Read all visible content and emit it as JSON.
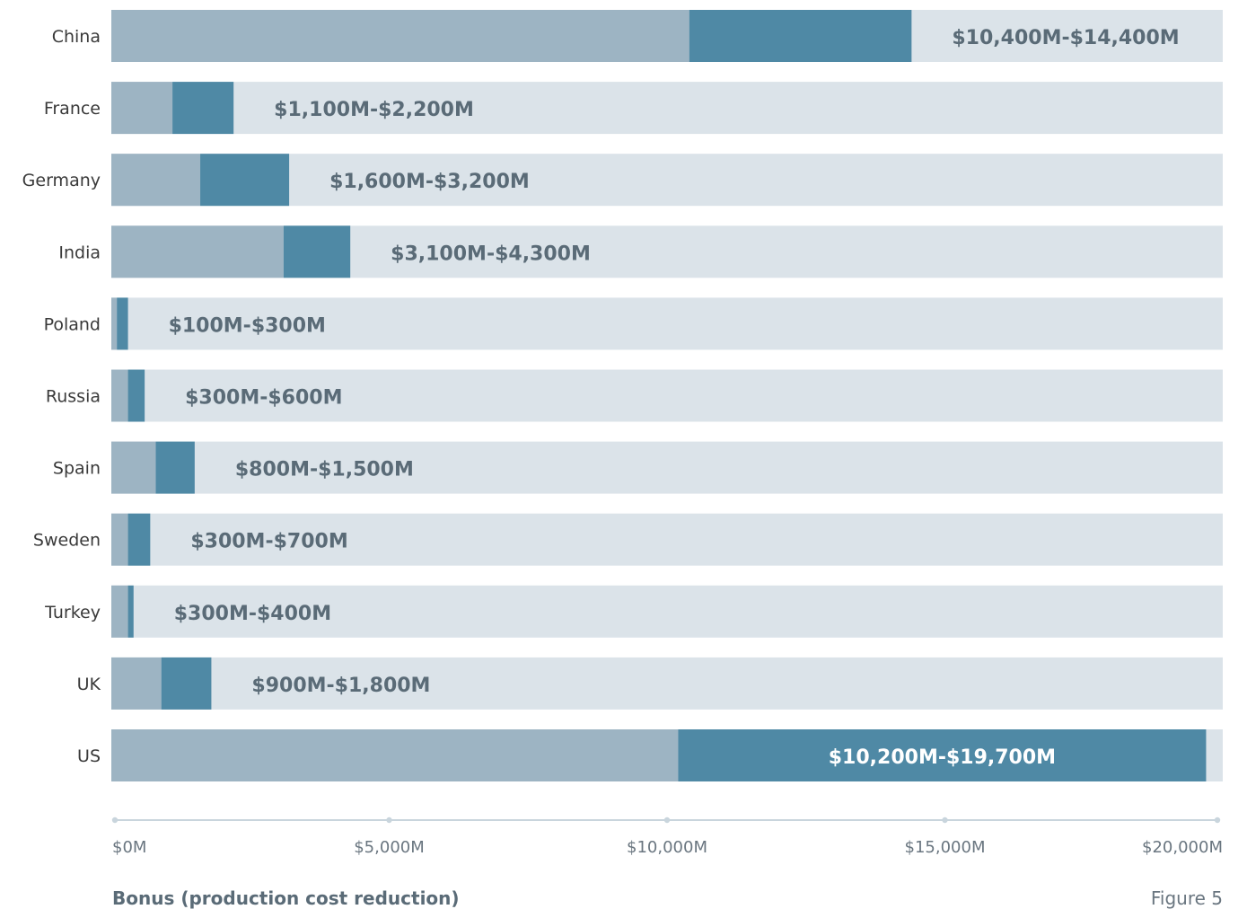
{
  "chart_data": {
    "type": "bar",
    "orientation": "horizontal",
    "categories": [
      "China",
      "France",
      "Germany",
      "India",
      "Poland",
      "Russia",
      "Spain",
      "Sweden",
      "Turkey",
      "UK",
      "US"
    ],
    "series": [
      {
        "low": [
          10400,
          1100,
          1600,
          3100,
          100,
          300,
          800,
          300,
          300,
          900,
          10200
        ],
        "high": [
          14400,
          2200,
          3200,
          4300,
          300,
          600,
          1500,
          700,
          400,
          1800,
          19700
        ]
      }
    ],
    "range_labels": [
      "$10,400M-$14,400M",
      "$1,100M-$2,200M",
      "$1,600M-$3,200M",
      "$3,100M-$4,300M",
      "$100M-$300M",
      "$300M-$600M",
      "$800M-$1,500M",
      "$300M-$700M",
      "$300M-$400M",
      "$900M-$1,800M",
      "$10,200M-$19,700M"
    ],
    "xlim": [
      0,
      20000
    ],
    "xticks": [
      0,
      5000,
      10000,
      15000,
      20000
    ],
    "xtick_labels": [
      "$0M",
      "$5,000M",
      "$10,000M",
      "$15,000M",
      "$20,000M"
    ],
    "xlabel": "Bonus (production cost reduction)",
    "grid": false,
    "legend": "none",
    "colors": {
      "track": "#dbe3e9",
      "low_segment": "#9db4c3",
      "range_segment": "#4f89a5",
      "axis": "#c9d5dd",
      "label_text": "#5a6b77"
    }
  },
  "figure_label": "Figure 5"
}
